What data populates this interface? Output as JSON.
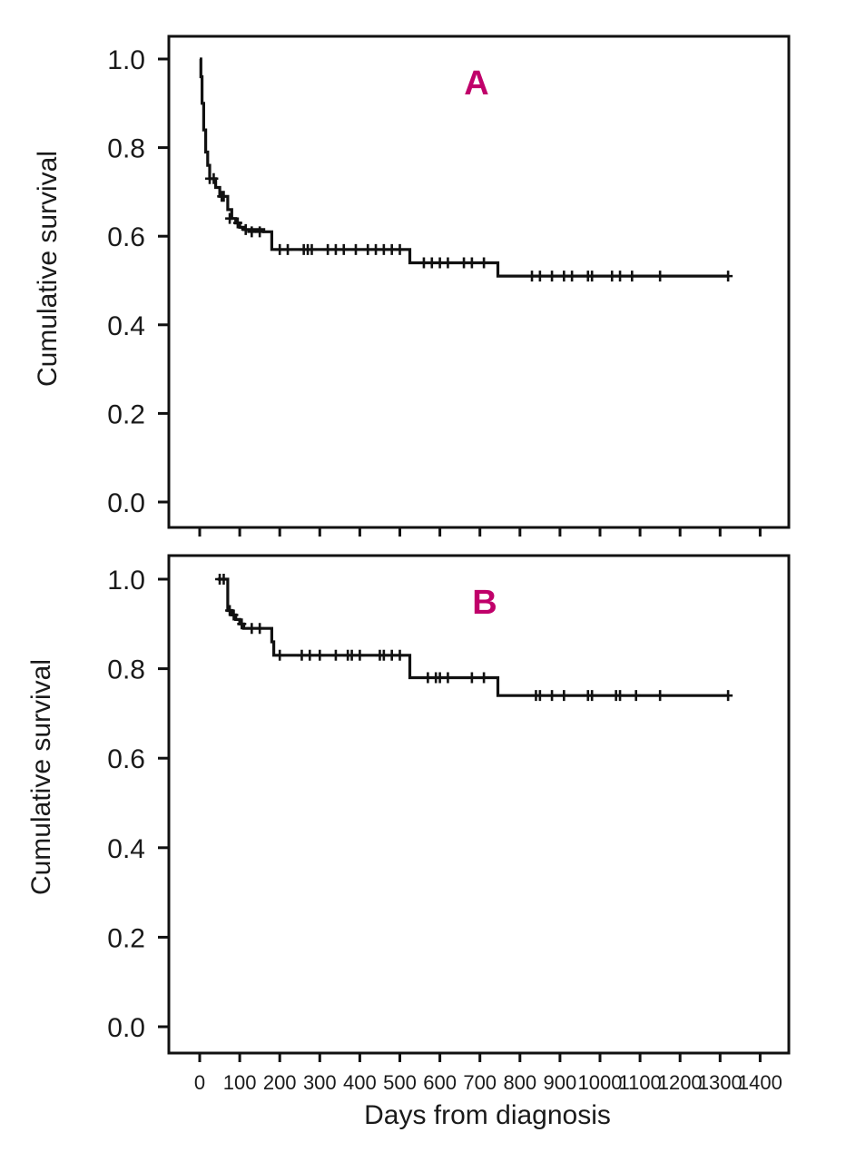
{
  "colors": {
    "panel_letter": "#c0006a",
    "line": "#111111",
    "frame": "#111111"
  },
  "shared": {
    "xlabel": "Days from diagnosis",
    "xticks": [
      0,
      100,
      200,
      300,
      400,
      500,
      600,
      700,
      800,
      900,
      1000,
      1100,
      1200,
      1300,
      1400
    ],
    "yticks": [
      "0.0",
      "0.2",
      "0.4",
      "0.6",
      "0.8",
      "1.0"
    ]
  },
  "chart_data": [
    {
      "type": "line",
      "panel": "A",
      "ylabel": "Cumulative survival",
      "xlim": [
        0,
        1400
      ],
      "ylim": [
        0,
        1.0
      ],
      "step": true,
      "series": [
        {
          "steps": [
            [
              0,
              1.0
            ],
            [
              3,
              0.96
            ],
            [
              6,
              0.9
            ],
            [
              10,
              0.84
            ],
            [
              15,
              0.79
            ],
            [
              20,
              0.76
            ],
            [
              25,
              0.73
            ],
            [
              40,
              0.71
            ],
            [
              50,
              0.69
            ],
            [
              70,
              0.66
            ],
            [
              80,
              0.64
            ],
            [
              90,
              0.63
            ],
            [
              100,
              0.62
            ],
            [
              110,
              0.615
            ],
            [
              160,
              0.61
            ],
            [
              180,
              0.57
            ],
            [
              520,
              0.57
            ],
            [
              525,
              0.54
            ],
            [
              740,
              0.54
            ],
            [
              745,
              0.51
            ],
            [
              1320,
              0.51
            ]
          ],
          "censored": [
            [
              25,
              0.73
            ],
            [
              35,
              0.73
            ],
            [
              55,
              0.69
            ],
            [
              60,
              0.69
            ],
            [
              75,
              0.64
            ],
            [
              95,
              0.63
            ],
            [
              115,
              0.615
            ],
            [
              130,
              0.61
            ],
            [
              150,
              0.61
            ],
            [
              200,
              0.57
            ],
            [
              220,
              0.57
            ],
            [
              260,
              0.57
            ],
            [
              270,
              0.57
            ],
            [
              280,
              0.57
            ],
            [
              320,
              0.57
            ],
            [
              340,
              0.57
            ],
            [
              360,
              0.57
            ],
            [
              390,
              0.57
            ],
            [
              420,
              0.57
            ],
            [
              440,
              0.57
            ],
            [
              460,
              0.57
            ],
            [
              480,
              0.57
            ],
            [
              500,
              0.57
            ],
            [
              560,
              0.54
            ],
            [
              580,
              0.54
            ],
            [
              600,
              0.54
            ],
            [
              620,
              0.54
            ],
            [
              660,
              0.54
            ],
            [
              680,
              0.54
            ],
            [
              710,
              0.54
            ],
            [
              830,
              0.51
            ],
            [
              850,
              0.51
            ],
            [
              880,
              0.51
            ],
            [
              910,
              0.51
            ],
            [
              930,
              0.51
            ],
            [
              970,
              0.51
            ],
            [
              980,
              0.51
            ],
            [
              1030,
              0.51
            ],
            [
              1050,
              0.51
            ],
            [
              1080,
              0.51
            ],
            [
              1150,
              0.51
            ],
            [
              1320,
              0.51
            ]
          ]
        }
      ]
    },
    {
      "type": "line",
      "panel": "B",
      "ylabel": "Cumulative survival",
      "xlabel": "Days from diagnosis",
      "xlim": [
        0,
        1400
      ],
      "ylim": [
        0,
        1.0
      ],
      "step": true,
      "series": [
        {
          "steps": [
            [
              45,
              1.0
            ],
            [
              65,
              1.0
            ],
            [
              70,
              0.93
            ],
            [
              80,
              0.92
            ],
            [
              90,
              0.91
            ],
            [
              100,
              0.9
            ],
            [
              110,
              0.89
            ],
            [
              170,
              0.89
            ],
            [
              180,
              0.86
            ],
            [
              185,
              0.83
            ],
            [
              520,
              0.83
            ],
            [
              525,
              0.78
            ],
            [
              740,
              0.78
            ],
            [
              745,
              0.74
            ],
            [
              1320,
              0.74
            ]
          ],
          "censored": [
            [
              50,
              1.0
            ],
            [
              60,
              1.0
            ],
            [
              75,
              0.93
            ],
            [
              85,
              0.92
            ],
            [
              105,
              0.9
            ],
            [
              130,
              0.89
            ],
            [
              150,
              0.89
            ],
            [
              200,
              0.83
            ],
            [
              255,
              0.83
            ],
            [
              275,
              0.83
            ],
            [
              300,
              0.83
            ],
            [
              340,
              0.83
            ],
            [
              370,
              0.83
            ],
            [
              380,
              0.83
            ],
            [
              400,
              0.83
            ],
            [
              450,
              0.83
            ],
            [
              460,
              0.83
            ],
            [
              480,
              0.83
            ],
            [
              500,
              0.83
            ],
            [
              570,
              0.78
            ],
            [
              590,
              0.78
            ],
            [
              600,
              0.78
            ],
            [
              620,
              0.78
            ],
            [
              680,
              0.78
            ],
            [
              710,
              0.78
            ],
            [
              840,
              0.74
            ],
            [
              850,
              0.74
            ],
            [
              880,
              0.74
            ],
            [
              910,
              0.74
            ],
            [
              970,
              0.74
            ],
            [
              980,
              0.74
            ],
            [
              1040,
              0.74
            ],
            [
              1050,
              0.74
            ],
            [
              1090,
              0.74
            ],
            [
              1150,
              0.74
            ],
            [
              1320,
              0.74
            ]
          ]
        }
      ]
    }
  ]
}
